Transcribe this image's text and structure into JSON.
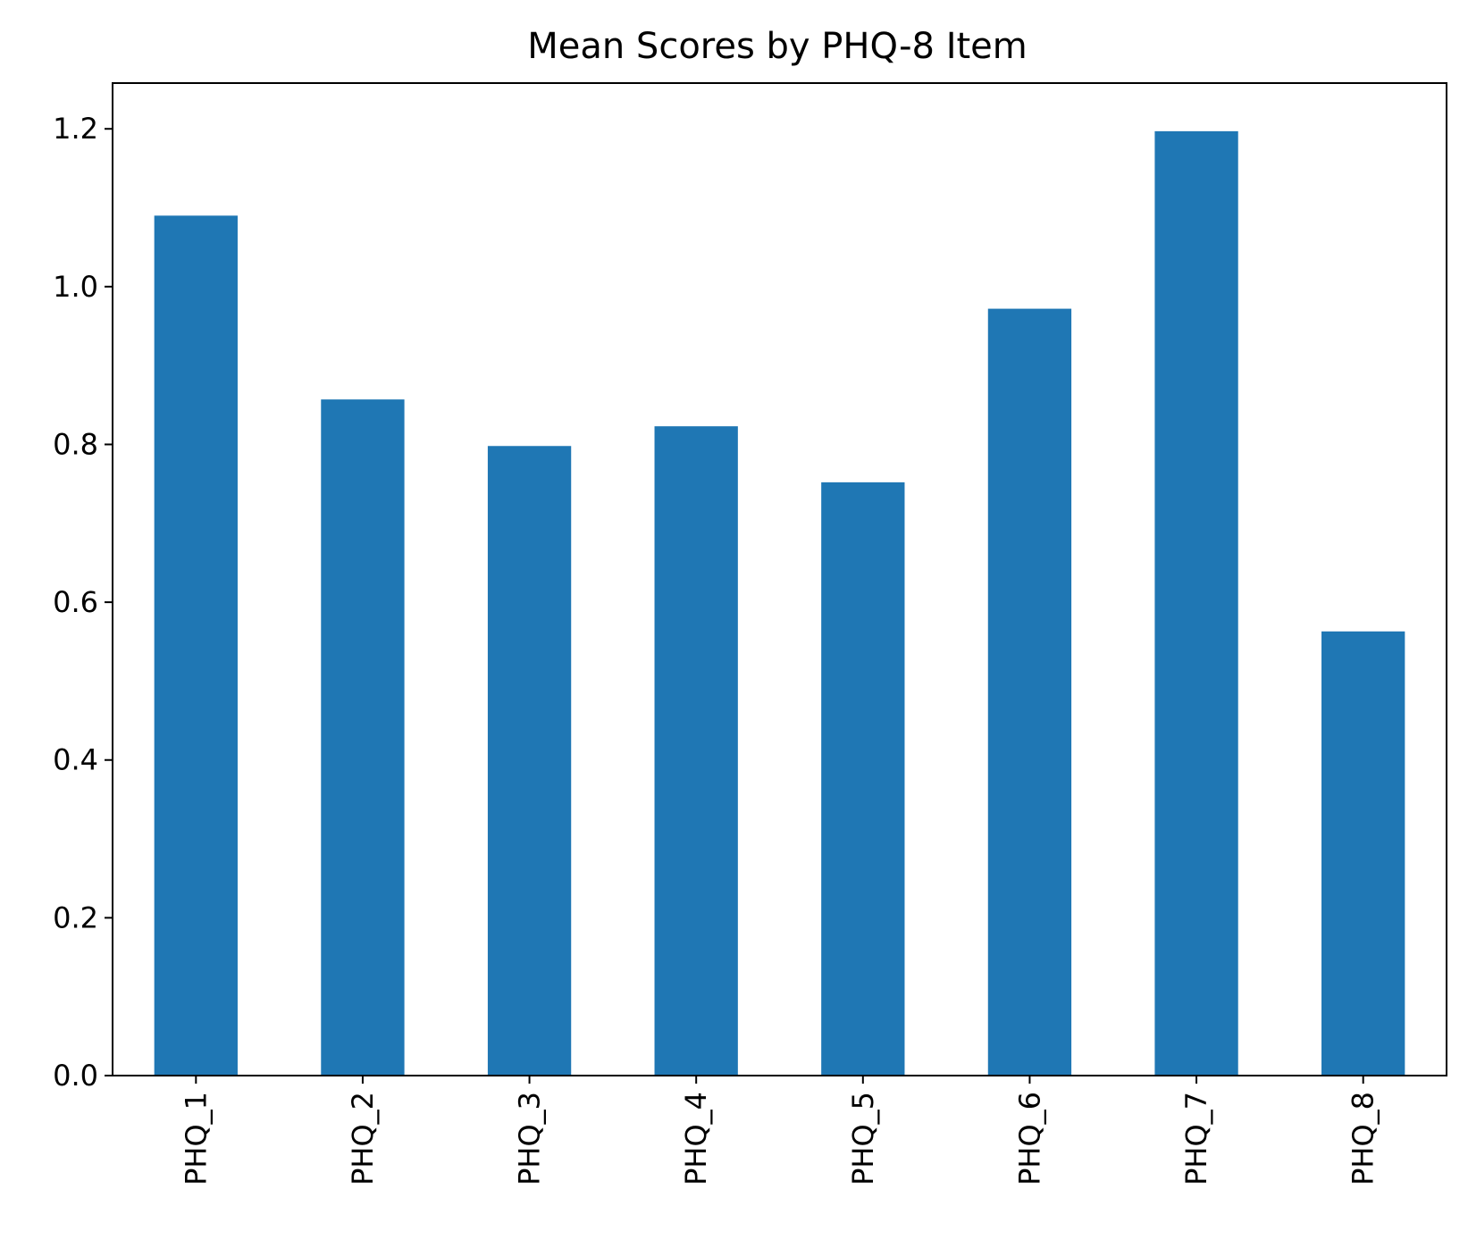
{
  "chart_data": {
    "type": "bar",
    "title": "Mean Scores by PHQ-8 Item",
    "xlabel": "",
    "ylabel": "",
    "categories": [
      "PHQ_1",
      "PHQ_2",
      "PHQ_3",
      "PHQ_4",
      "PHQ_5",
      "PHQ_6",
      "PHQ_7",
      "PHQ_8"
    ],
    "values": [
      1.09,
      0.857,
      0.798,
      0.823,
      0.752,
      0.972,
      1.197,
      0.563
    ],
    "ylim": [
      0,
      1.258
    ],
    "yticks": [
      "0.0",
      "0.2",
      "0.4",
      "0.6",
      "0.8",
      "1.0",
      "1.2"
    ],
    "grid": false,
    "legend": "none",
    "bar_color": "#1f77b4"
  }
}
